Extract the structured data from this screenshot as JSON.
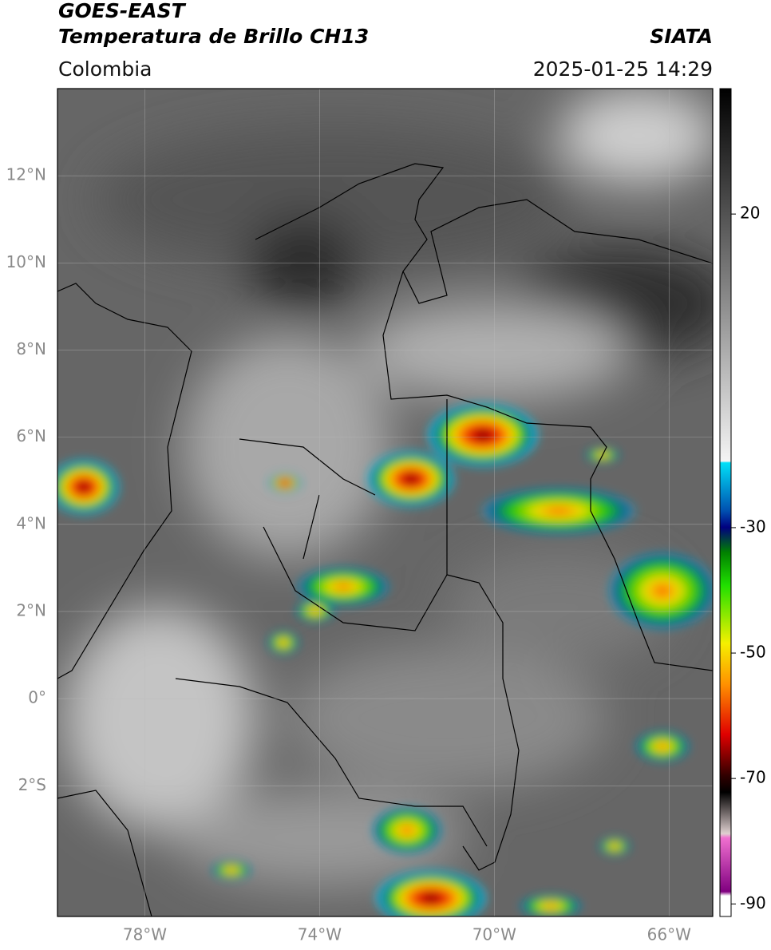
{
  "header": {
    "satellite": "GOES-EAST",
    "product": "Temperatura de Brillo CH13",
    "source": "SIATA",
    "region": "Colombia",
    "datetime": "2025-01-25 14:29"
  },
  "map": {
    "lon_range": [
      -80,
      -65
    ],
    "lat_range": [
      -5,
      14
    ],
    "lat_ticks": [
      {
        "value": 12,
        "label": "12°N"
      },
      {
        "value": 10,
        "label": "10°N"
      },
      {
        "value": 8,
        "label": "8°N"
      },
      {
        "value": 6,
        "label": "6°N"
      },
      {
        "value": 4,
        "label": "4°N"
      },
      {
        "value": 2,
        "label": "2°N"
      },
      {
        "value": 0,
        "label": "0°"
      },
      {
        "value": -2,
        "label": "2°S"
      }
    ],
    "lon_ticks": [
      {
        "value": -78,
        "label": "78°W"
      },
      {
        "value": -74,
        "label": "74°W"
      },
      {
        "value": -70,
        "label": "70°W"
      },
      {
        "value": -66,
        "label": "66°W"
      }
    ]
  },
  "colorbar": {
    "range": [
      -92,
      40
    ],
    "ticks": [
      20,
      -30,
      -50,
      -70,
      -90
    ]
  }
}
